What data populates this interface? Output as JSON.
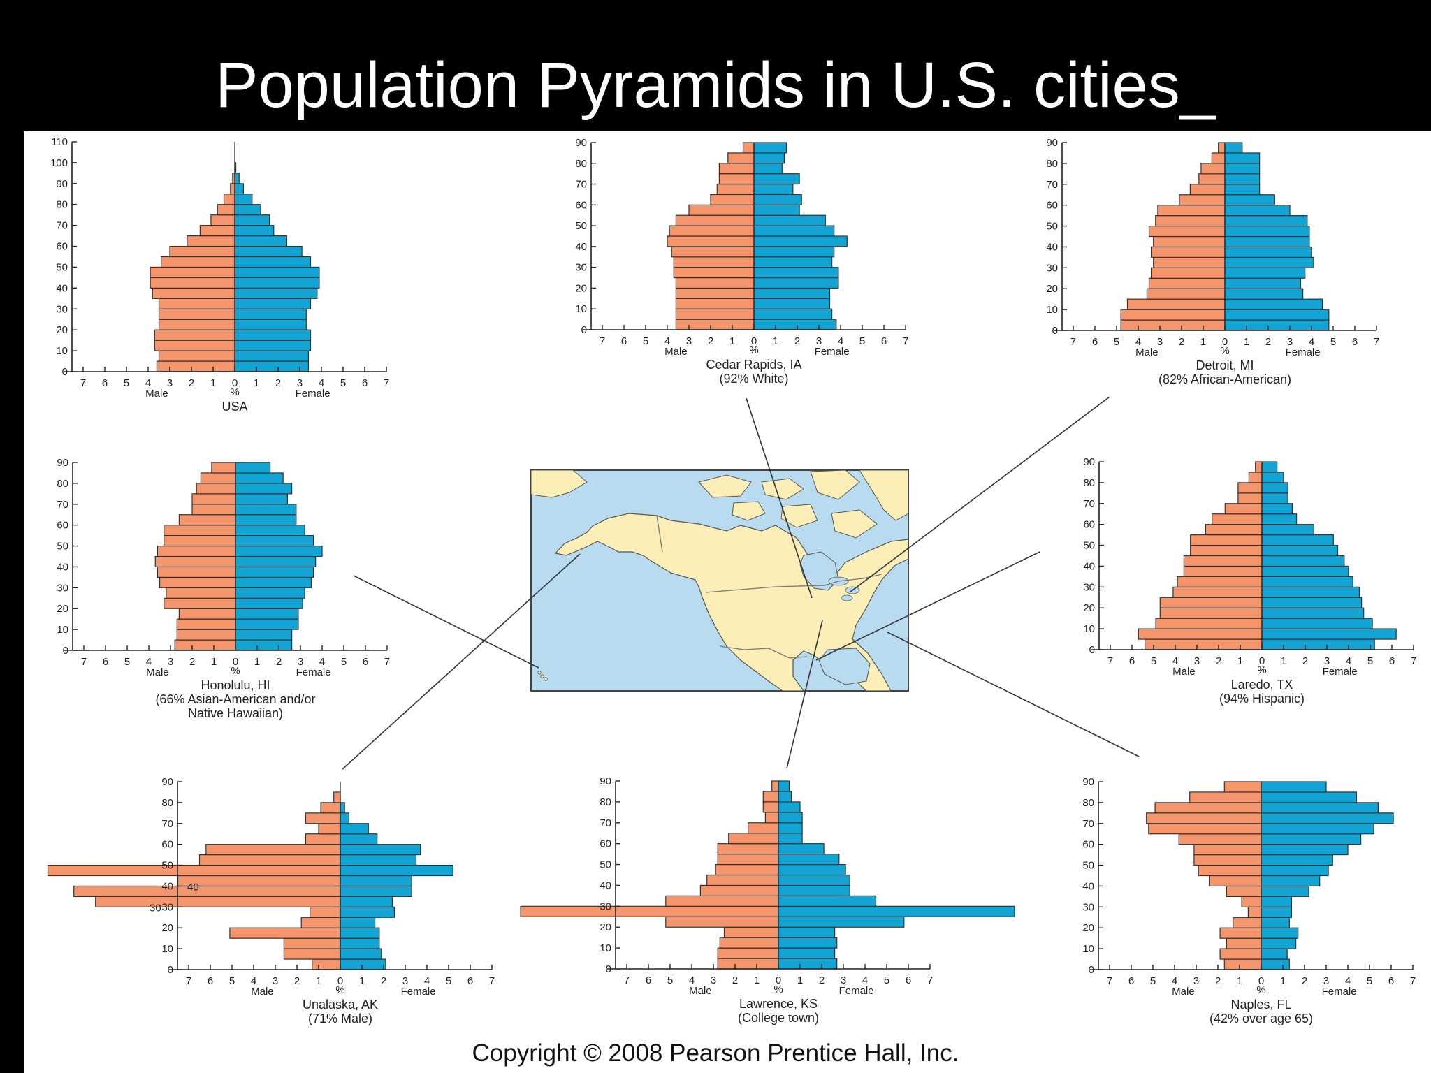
{
  "slide": {
    "title": "Population Pyramids in U.S. cities_",
    "copyright": "Copyright © 2008 Pearson Prentice Hall, Inc."
  },
  "colors": {
    "male": "#f4956b",
    "female": "#12a5d3",
    "water": "#b9dbef",
    "land": "#fbefb7",
    "slide_background": "#000000",
    "figure_background": "#ffffff"
  },
  "chart_data": [
    {
      "type": "bar",
      "subtype": "population-pyramid",
      "title": "USA",
      "subtitle": "",
      "xlabel": "%",
      "male_label": "Male",
      "female_label": "Female",
      "x_ticks": [
        7,
        6,
        5,
        4,
        3,
        2,
        1,
        0,
        1,
        2,
        3,
        4,
        5,
        6,
        7
      ],
      "y_ticks": [
        0,
        10,
        20,
        30,
        40,
        50,
        60,
        70,
        80,
        90,
        100,
        110
      ],
      "ylim": [
        0,
        110
      ],
      "bin": 5,
      "male": [
        3.6,
        3.5,
        3.7,
        3.7,
        3.5,
        3.5,
        3.5,
        3.8,
        3.9,
        3.9,
        3.4,
        3.0,
        2.2,
        1.6,
        1.1,
        0.8,
        0.5,
        0.2,
        0.1,
        0.0
      ],
      "female": [
        3.4,
        3.4,
        3.5,
        3.5,
        3.3,
        3.3,
        3.5,
        3.8,
        3.9,
        3.9,
        3.5,
        3.1,
        2.4,
        1.8,
        1.6,
        1.2,
        0.8,
        0.4,
        0.2,
        0.05
      ]
    },
    {
      "type": "bar",
      "subtype": "population-pyramid",
      "title": "Cedar Rapids, IA",
      "subtitle": "(92% White)",
      "xlabel": "%",
      "male_label": "Male",
      "female_label": "Female",
      "x_ticks": [
        7,
        6,
        5,
        4,
        3,
        2,
        1,
        0,
        1,
        2,
        3,
        4,
        5,
        6,
        7
      ],
      "y_ticks": [
        0,
        10,
        20,
        30,
        40,
        50,
        60,
        70,
        80,
        90
      ],
      "ylim": [
        0,
        90
      ],
      "bin": 5,
      "male": [
        3.6,
        3.6,
        3.6,
        3.6,
        3.6,
        3.7,
        3.7,
        3.8,
        4.0,
        3.9,
        3.6,
        3.0,
        2.0,
        1.7,
        1.6,
        1.6,
        1.2,
        0.5
      ],
      "female": [
        3.8,
        3.6,
        3.5,
        3.5,
        3.9,
        3.9,
        3.6,
        3.7,
        4.3,
        3.7,
        3.3,
        2.1,
        2.2,
        1.8,
        2.1,
        1.3,
        1.4,
        1.5
      ]
    },
    {
      "type": "bar",
      "subtype": "population-pyramid",
      "title": "Detroit, MI",
      "subtitle": "(82% African-American)",
      "xlabel": "%",
      "male_label": "Male",
      "female_label": "Female",
      "x_ticks": [
        7,
        6,
        5,
        4,
        3,
        2,
        1,
        0,
        1,
        2,
        3,
        4,
        5,
        6,
        7
      ],
      "y_ticks": [
        0,
        10,
        20,
        30,
        40,
        50,
        60,
        70,
        80,
        90
      ],
      "ylim": [
        0,
        90
      ],
      "bin": 5,
      "male": [
        4.8,
        4.8,
        4.5,
        3.6,
        3.5,
        3.4,
        3.3,
        3.4,
        3.3,
        3.5,
        3.2,
        3.1,
        2.1,
        1.6,
        1.2,
        1.1,
        0.6,
        0.3
      ],
      "female": [
        4.8,
        4.8,
        4.5,
        3.6,
        3.5,
        3.7,
        4.1,
        4.0,
        3.9,
        3.9,
        3.8,
        3.0,
        2.3,
        1.6,
        1.6,
        1.6,
        1.6,
        0.8
      ]
    },
    {
      "type": "bar",
      "subtype": "population-pyramid",
      "title": "Honolulu, HI",
      "subtitle": "(66% Asian-American and/or",
      "subtitle2": "Native Hawaiian)",
      "xlabel": "%",
      "male_label": "Male",
      "female_label": "Female",
      "x_ticks": [
        7,
        6,
        5,
        4,
        3,
        2,
        1,
        0,
        1,
        2,
        3,
        4,
        5,
        6,
        7
      ],
      "y_ticks": [
        0,
        10,
        20,
        30,
        40,
        50,
        60,
        70,
        80,
        90
      ],
      "ylim": [
        0,
        90
      ],
      "bin": 5,
      "male": [
        2.8,
        2.7,
        2.7,
        2.6,
        3.3,
        3.2,
        3.5,
        3.6,
        3.7,
        3.6,
        3.3,
        3.3,
        2.6,
        2.0,
        2.0,
        1.8,
        1.6,
        1.1
      ],
      "female": [
        2.6,
        2.6,
        2.9,
        2.9,
        3.1,
        3.2,
        3.5,
        3.6,
        3.7,
        4.0,
        3.6,
        3.2,
        2.8,
        2.8,
        2.4,
        2.6,
        2.2,
        1.6
      ]
    },
    {
      "type": "bar",
      "subtype": "population-pyramid",
      "title": "Laredo, TX",
      "subtitle": "(94% Hispanic)",
      "xlabel": "%",
      "male_label": "Male",
      "female_label": "Female",
      "x_ticks": [
        7,
        6,
        5,
        4,
        3,
        2,
        1,
        0,
        1,
        2,
        3,
        4,
        5,
        6,
        7
      ],
      "y_ticks": [
        0,
        10,
        20,
        30,
        40,
        50,
        60,
        70,
        80,
        90
      ],
      "ylim": [
        0,
        90
      ],
      "bin": 5,
      "male": [
        5.4,
        5.7,
        4.9,
        4.7,
        4.7,
        4.1,
        3.9,
        3.6,
        3.6,
        3.3,
        3.3,
        2.6,
        2.3,
        1.7,
        1.1,
        1.1,
        0.6,
        0.3
      ],
      "female": [
        5.2,
        6.2,
        5.1,
        4.7,
        4.6,
        4.5,
        4.2,
        4.0,
        3.8,
        3.5,
        3.3,
        2.4,
        1.6,
        1.4,
        1.2,
        1.2,
        1.0,
        0.7
      ]
    },
    {
      "type": "bar",
      "subtype": "population-pyramid",
      "title": "Unalaska, AK",
      "subtitle": "(71% Male)",
      "xlabel": "%",
      "male_label": "Male",
      "female_label": "Female",
      "x_ticks": [
        7,
        6,
        5,
        4,
        3,
        2,
        1,
        0,
        1,
        2,
        3,
        4,
        5,
        6,
        7
      ],
      "y_ticks": [
        0,
        10,
        20,
        30,
        40,
        50,
        60,
        70,
        80,
        90
      ],
      "ylim": [
        0,
        90
      ],
      "bin": 5,
      "male": [
        1.3,
        2.6,
        2.6,
        5.1,
        1.8,
        1.4,
        11.3,
        12.3,
        7.5,
        13.5,
        6.5,
        6.2,
        1.6,
        1.0,
        1.6,
        0.9,
        0.3,
        0.0
      ],
      "female": [
        2.1,
        1.9,
        1.8,
        1.8,
        1.6,
        2.5,
        2.4,
        3.3,
        3.3,
        5.2,
        3.5,
        3.7,
        1.7,
        1.3,
        0.4,
        0.2,
        0.0,
        0.0
      ]
    },
    {
      "type": "bar",
      "subtype": "population-pyramid",
      "title": "Lawrence, KS",
      "subtitle": "(College town)",
      "xlabel": "%",
      "male_label": "Male",
      "female_label": "Female",
      "x_ticks": [
        7,
        6,
        5,
        4,
        3,
        2,
        1,
        0,
        1,
        2,
        3,
        4,
        5,
        6,
        7
      ],
      "y_ticks": [
        0,
        10,
        20,
        30,
        40,
        50,
        60,
        70,
        80,
        90
      ],
      "ylim": [
        0,
        90
      ],
      "bin": 5,
      "male": [
        2.8,
        2.8,
        2.7,
        2.5,
        5.2,
        11.9,
        5.2,
        3.6,
        3.3,
        2.9,
        2.8,
        2.8,
        2.3,
        1.4,
        0.6,
        0.7,
        0.7,
        0.3
      ],
      "female": [
        2.7,
        2.6,
        2.7,
        2.6,
        5.8,
        10.9,
        4.5,
        3.3,
        3.3,
        3.1,
        2.8,
        2.1,
        1.1,
        1.1,
        1.1,
        1.0,
        0.6,
        0.5
      ]
    },
    {
      "type": "bar",
      "subtype": "population-pyramid",
      "title": "Naples, FL",
      "subtitle": "(42% over age 65)",
      "xlabel": "%",
      "male_label": "Male",
      "female_label": "Female",
      "x_ticks": [
        7,
        6,
        5,
        4,
        3,
        2,
        1,
        0,
        1,
        2,
        3,
        4,
        5,
        6,
        7
      ],
      "y_ticks": [
        0,
        10,
        20,
        30,
        40,
        50,
        60,
        70,
        80,
        90
      ],
      "ylim": [
        0,
        90
      ],
      "bin": 5,
      "male": [
        1.7,
        1.9,
        1.6,
        1.9,
        1.3,
        0.6,
        0.9,
        1.6,
        2.4,
        2.9,
        3.1,
        3.1,
        3.8,
        5.2,
        5.3,
        4.9,
        3.3,
        1.7
      ],
      "female": [
        1.3,
        1.2,
        1.6,
        1.7,
        1.3,
        1.4,
        1.4,
        2.2,
        2.7,
        3.1,
        3.3,
        4.0,
        4.6,
        5.2,
        6.1,
        5.4,
        4.4,
        3.0
      ]
    }
  ]
}
